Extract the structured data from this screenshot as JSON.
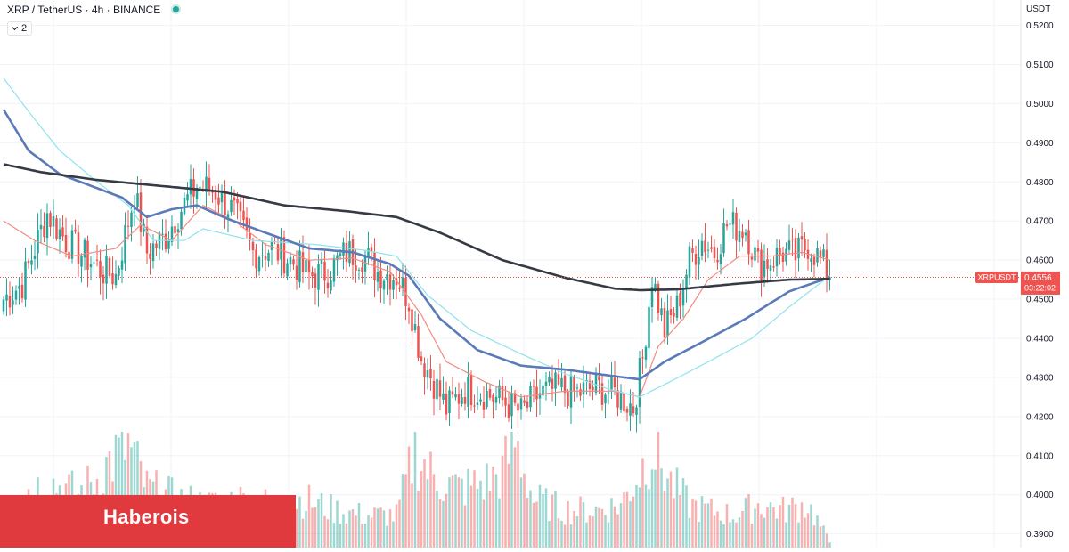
{
  "header": {
    "symbol": "XRP / TetherUS · 4h · BINANCE",
    "indicator_badge": "2"
  },
  "watermark": {
    "text": "Haberois"
  },
  "price_axis": {
    "currency_label": "USDT"
  },
  "price_tag": {
    "symbol": "XRPUSDT",
    "price": "0.4556",
    "countdown": "03:22:02"
  },
  "colors": {
    "up": "#26a69a",
    "down": "#ef5350",
    "ma_fast": "#f28b82",
    "ma_mid": "#5b7ab8",
    "ma_slow_light": "#8fe3ec",
    "ma_long": "#363a45",
    "watermark": "#e0393e"
  },
  "chart_data": {
    "type": "candlestick",
    "title": "",
    "ylabel": "",
    "xlabel": "",
    "ylim": [
      0.3865,
      0.5265
    ],
    "y_ticks": [
      0.39,
      0.4,
      0.41,
      0.42,
      0.43,
      0.44,
      0.45,
      0.46,
      0.47,
      0.48,
      0.49,
      0.5,
      0.51,
      0.52
    ],
    "last_price": 0.4556,
    "grid": true,
    "ohlc_anchors": [
      [
        0,
        0.45
      ],
      [
        6,
        0.454
      ],
      [
        14,
        0.472
      ],
      [
        20,
        0.465
      ],
      [
        26,
        0.461
      ],
      [
        32,
        0.457
      ],
      [
        36,
        0.456
      ],
      [
        42,
        0.477
      ],
      [
        46,
        0.462
      ],
      [
        52,
        0.466
      ],
      [
        56,
        0.472
      ],
      [
        62,
        0.479
      ],
      [
        68,
        0.4775
      ],
      [
        74,
        0.472
      ],
      [
        80,
        0.462
      ],
      [
        86,
        0.463
      ],
      [
        92,
        0.46
      ],
      [
        98,
        0.456
      ],
      [
        104,
        0.457
      ],
      [
        110,
        0.462
      ],
      [
        116,
        0.461
      ],
      [
        120,
        0.457
      ],
      [
        126,
        0.456
      ],
      [
        130,
        0.45
      ],
      [
        134,
        0.435
      ],
      [
        138,
        0.429
      ],
      [
        142,
        0.422
      ],
      [
        148,
        0.427
      ],
      [
        154,
        0.426
      ],
      [
        160,
        0.424
      ],
      [
        166,
        0.421
      ],
      [
        172,
        0.426
      ],
      [
        178,
        0.427
      ],
      [
        184,
        0.426
      ],
      [
        190,
        0.4275
      ],
      [
        196,
        0.426
      ],
      [
        202,
        0.4225
      ],
      [
        205,
        0.435
      ],
      [
        208,
        0.456
      ],
      [
        212,
        0.442
      ],
      [
        216,
        0.448
      ],
      [
        220,
        0.46
      ],
      [
        224,
        0.465
      ],
      [
        228,
        0.462
      ],
      [
        232,
        0.469
      ],
      [
        238,
        0.468
      ],
      [
        242,
        0.459
      ],
      [
        246,
        0.46
      ],
      [
        250,
        0.462
      ],
      [
        254,
        0.461
      ],
      [
        258,
        0.464
      ],
      [
        262,
        0.46
      ],
      [
        265,
        0.4556
      ]
    ],
    "volume_anchors": [
      [
        0,
        0.35
      ],
      [
        8,
        0.55
      ],
      [
        16,
        0.6
      ],
      [
        24,
        0.5
      ],
      [
        30,
        0.65
      ],
      [
        34,
        0.8
      ],
      [
        40,
        0.95
      ],
      [
        46,
        0.55
      ],
      [
        56,
        0.45
      ],
      [
        66,
        0.4
      ],
      [
        76,
        0.45
      ],
      [
        86,
        0.4
      ],
      [
        96,
        0.45
      ],
      [
        106,
        0.35
      ],
      [
        116,
        0.3
      ],
      [
        126,
        0.3
      ],
      [
        132,
        0.9
      ],
      [
        138,
        0.65
      ],
      [
        146,
        0.55
      ],
      [
        154,
        0.6
      ],
      [
        160,
        0.7
      ],
      [
        164,
        1.0
      ],
      [
        170,
        0.45
      ],
      [
        180,
        0.35
      ],
      [
        190,
        0.35
      ],
      [
        198,
        0.4
      ],
      [
        204,
        0.7
      ],
      [
        208,
        0.95
      ],
      [
        214,
        0.6
      ],
      [
        220,
        0.4
      ],
      [
        226,
        0.35
      ],
      [
        234,
        0.3
      ],
      [
        242,
        0.4
      ],
      [
        250,
        0.35
      ],
      [
        258,
        0.4
      ],
      [
        265,
        0.05
      ]
    ],
    "moving_averages": [
      {
        "name": "",
        "role": "ma_fast",
        "points": [
          [
            0,
            0.47
          ],
          [
            10,
            0.465
          ],
          [
            22,
            0.461
          ],
          [
            36,
            0.463
          ],
          [
            44,
            0.469
          ],
          [
            54,
            0.465
          ],
          [
            64,
            0.474
          ],
          [
            74,
            0.47
          ],
          [
            84,
            0.464
          ],
          [
            98,
            0.46
          ],
          [
            112,
            0.4605
          ],
          [
            124,
            0.457
          ],
          [
            134,
            0.446
          ],
          [
            142,
            0.434
          ],
          [
            154,
            0.429
          ],
          [
            166,
            0.425
          ],
          [
            180,
            0.4265
          ],
          [
            196,
            0.4265
          ],
          [
            204,
            0.425
          ],
          [
            210,
            0.438
          ],
          [
            218,
            0.445
          ],
          [
            226,
            0.455
          ],
          [
            236,
            0.461
          ],
          [
            246,
            0.461
          ],
          [
            256,
            0.462
          ],
          [
            265,
            0.46
          ]
        ]
      },
      {
        "name": "",
        "role": "ma_slow_light",
        "points": [
          [
            0,
            0.5065
          ],
          [
            8,
            0.498
          ],
          [
            18,
            0.488
          ],
          [
            30,
            0.48
          ],
          [
            40,
            0.474
          ],
          [
            48,
            0.465
          ],
          [
            58,
            0.465
          ],
          [
            64,
            0.468
          ],
          [
            80,
            0.465
          ],
          [
            100,
            0.464
          ],
          [
            116,
            0.4625
          ],
          [
            126,
            0.461
          ],
          [
            136,
            0.451
          ],
          [
            150,
            0.442
          ],
          [
            166,
            0.436
          ],
          [
            180,
            0.431
          ],
          [
            194,
            0.427
          ],
          [
            204,
            0.425
          ],
          [
            214,
            0.429
          ],
          [
            226,
            0.434
          ],
          [
            240,
            0.44
          ],
          [
            252,
            0.448
          ],
          [
            265,
            0.456
          ]
        ]
      },
      {
        "name": "",
        "role": "ma_mid",
        "points": [
          [
            0,
            0.4985
          ],
          [
            8,
            0.488
          ],
          [
            18,
            0.482
          ],
          [
            28,
            0.479
          ],
          [
            38,
            0.476
          ],
          [
            46,
            0.471
          ],
          [
            54,
            0.473
          ],
          [
            62,
            0.474
          ],
          [
            72,
            0.4705
          ],
          [
            84,
            0.467
          ],
          [
            98,
            0.463
          ],
          [
            112,
            0.462
          ],
          [
            124,
            0.459
          ],
          [
            130,
            0.456
          ],
          [
            140,
            0.445
          ],
          [
            152,
            0.437
          ],
          [
            166,
            0.433
          ],
          [
            180,
            0.432
          ],
          [
            194,
            0.4305
          ],
          [
            204,
            0.4295
          ],
          [
            212,
            0.434
          ],
          [
            224,
            0.439
          ],
          [
            238,
            0.445
          ],
          [
            252,
            0.452
          ],
          [
            265,
            0.4556
          ]
        ]
      },
      {
        "name": "",
        "role": "ma_long",
        "points": [
          [
            0,
            0.4845
          ],
          [
            12,
            0.4825
          ],
          [
            30,
            0.4805
          ],
          [
            50,
            0.479
          ],
          [
            70,
            0.4775
          ],
          [
            90,
            0.474
          ],
          [
            110,
            0.4725
          ],
          [
            126,
            0.471
          ],
          [
            140,
            0.467
          ],
          [
            160,
            0.46
          ],
          [
            180,
            0.4555
          ],
          [
            196,
            0.4527
          ],
          [
            204,
            0.4523
          ],
          [
            216,
            0.4525
          ],
          [
            236,
            0.454
          ],
          [
            252,
            0.455
          ],
          [
            265,
            0.4552
          ]
        ]
      }
    ]
  }
}
